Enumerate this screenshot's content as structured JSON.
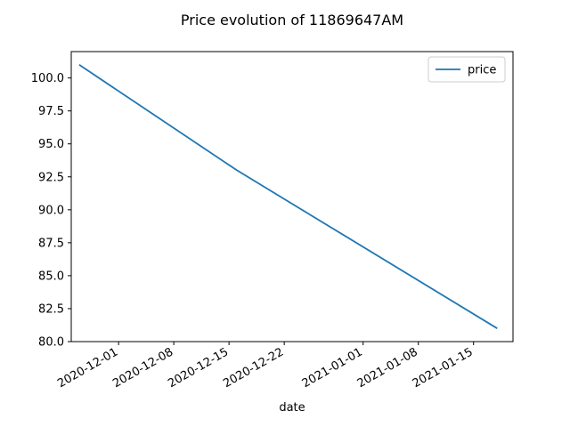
{
  "chart_data": {
    "type": "line",
    "title": "Price evolution of 11869647AM",
    "xlabel": "date",
    "ylabel": "",
    "x_ticks": [
      "2020-12-01",
      "2020-12-08",
      "2020-12-15",
      "2020-12-22",
      "2021-01-01",
      "2021-01-08",
      "2021-01-15"
    ],
    "y_ticks": [
      "80.0",
      "82.5",
      "85.0",
      "87.5",
      "90.0",
      "92.5",
      "95.0",
      "97.5",
      "100.0"
    ],
    "xlim": [
      "2020-11-25",
      "2021-01-20"
    ],
    "ylim": [
      80.0,
      102.0
    ],
    "grid": false,
    "legend_position": "top-right",
    "series": [
      {
        "name": "price",
        "color": "#1f77b4",
        "x": [
          "2020-11-26",
          "2020-12-16",
          "2021-01-18"
        ],
        "values": [
          101.0,
          93.0,
          81.0
        ]
      }
    ]
  }
}
